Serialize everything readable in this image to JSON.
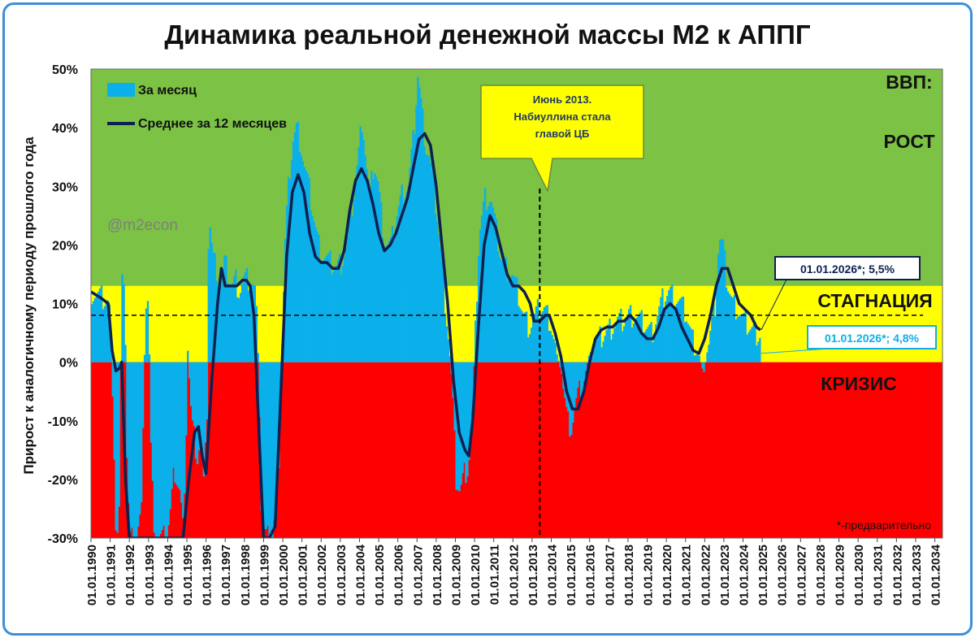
{
  "chart_data": {
    "type": "bar+line",
    "title": "Динамика реальной денежной массы М2 к АППГ",
    "ylabel": "Прирост к аналогичному периоду прошлого года",
    "ylim": [
      -30,
      50
    ],
    "y_ticks": [
      "50%",
      "40%",
      "30%",
      "20%",
      "10%",
      "0%",
      "-10%",
      "-20%",
      "-30%"
    ],
    "x_ticks": [
      "01.01.1990",
      "01.01.1991",
      "01.01.1992",
      "01.01.1993",
      "01.01.1994",
      "01.01.1995",
      "01.01.1996",
      "01.01.1997",
      "01.01.1998",
      "01.01.1999",
      "01.01.2000",
      "01.01.2001",
      "01.01.2002",
      "01.01.2003",
      "01.01.2004",
      "01.01.2005",
      "01.01.2006",
      "01.01.2007",
      "01.01.2008",
      "01.01.2009",
      "01.01.2010",
      "01.01.2011",
      "01.01.2012",
      "01.01.2013",
      "01.01.2014",
      "01.01.2015",
      "01.01.2016",
      "01.01.2017",
      "01.01.2018",
      "01.01.2019",
      "01.01.2020",
      "01.01.2021",
      "01.01.2022",
      "01.01.2023",
      "01.01.2024",
      "01.01.2025",
      "01.01.2026",
      "01.01.2027",
      "01.01.2028",
      "01.01.2029",
      "01.01.2030",
      "01.01.2031",
      "01.01.2032",
      "01.01.2033",
      "01.01.2034"
    ],
    "xlim": [
      1990,
      2034.4
    ],
    "zones": [
      {
        "label": "ВВП:",
        "sublabel": "РОСТ",
        "from": 13,
        "to": 50,
        "color": "#7cc244"
      },
      {
        "label": "СТАГНАЦИЯ",
        "from": 0,
        "to": 13,
        "color": "#ffff00"
      },
      {
        "label": "КРИЗИС",
        "from": -30,
        "to": 0,
        "color": "#ff0000"
      }
    ],
    "reference_line": {
      "y": 8,
      "style": "dashed"
    },
    "series": [
      {
        "name": "За месяц",
        "kind": "bar",
        "color": "#0bb0ea",
        "points": [
          [
            1990,
            12
          ],
          [
            1990.5,
            11
          ],
          [
            1990.9,
            10
          ],
          [
            1991.1,
            -5
          ],
          [
            1991.25,
            -28
          ],
          [
            1991.4,
            -30
          ],
          [
            1991.55,
            12
          ],
          [
            1991.7,
            16
          ],
          [
            1991.85,
            -20
          ],
          [
            1992.0,
            -30
          ],
          [
            1992.3,
            -30
          ],
          [
            1992.6,
            -25
          ],
          [
            1992.8,
            10
          ],
          [
            1992.95,
            11
          ],
          [
            1993.1,
            -18
          ],
          [
            1993.3,
            -30
          ],
          [
            1993.6,
            -30
          ],
          [
            1993.9,
            -30
          ],
          [
            1994.1,
            -25
          ],
          [
            1994.3,
            -18
          ],
          [
            1994.6,
            -22
          ],
          [
            1994.8,
            -30
          ],
          [
            1995.0,
            3
          ],
          [
            1995.2,
            -10
          ],
          [
            1995.5,
            -16
          ],
          [
            1995.7,
            -12
          ],
          [
            1995.85,
            -22
          ],
          [
            1996.0,
            -8
          ],
          [
            1996.1,
            26
          ],
          [
            1996.3,
            18
          ],
          [
            1996.5,
            16
          ],
          [
            1996.7,
            12
          ],
          [
            1996.9,
            17
          ],
          [
            1997.1,
            15
          ],
          [
            1997.3,
            13
          ],
          [
            1997.5,
            14
          ],
          [
            1997.7,
            12
          ],
          [
            1997.9,
            14
          ],
          [
            1998.1,
            14
          ],
          [
            1998.3,
            14
          ],
          [
            1998.5,
            12
          ],
          [
            1998.7,
            2
          ],
          [
            1998.85,
            -28
          ],
          [
            1999.1,
            -30
          ],
          [
            1999.4,
            -30
          ],
          [
            1999.7,
            -22
          ],
          [
            1999.9,
            2
          ],
          [
            2000.1,
            22
          ],
          [
            2000.3,
            32
          ],
          [
            2000.5,
            38
          ],
          [
            2000.7,
            40
          ],
          [
            2000.9,
            37
          ],
          [
            2001.1,
            33
          ],
          [
            2001.3,
            30
          ],
          [
            2001.5,
            26
          ],
          [
            2001.7,
            22
          ],
          [
            2001.9,
            19
          ],
          [
            2002.1,
            18
          ],
          [
            2002.4,
            17
          ],
          [
            2002.7,
            16
          ],
          [
            2003.0,
            17
          ],
          [
            2003.3,
            20
          ],
          [
            2003.6,
            27
          ],
          [
            2003.9,
            35
          ],
          [
            2004.1,
            42
          ],
          [
            2004.3,
            34
          ],
          [
            2004.5,
            28
          ],
          [
            2004.7,
            34
          ],
          [
            2004.9,
            31
          ],
          [
            2005.1,
            25
          ],
          [
            2005.3,
            20
          ],
          [
            2005.6,
            20
          ],
          [
            2005.9,
            25
          ],
          [
            2006.2,
            29
          ],
          [
            2006.5,
            30
          ],
          [
            2006.8,
            39
          ],
          [
            2007.0,
            49
          ],
          [
            2007.2,
            43
          ],
          [
            2007.4,
            37
          ],
          [
            2007.6,
            35
          ],
          [
            2007.8,
            30
          ],
          [
            2008.0,
            25
          ],
          [
            2008.2,
            18
          ],
          [
            2008.4,
            11
          ],
          [
            2008.6,
            4
          ],
          [
            2008.8,
            -5
          ],
          [
            2009.0,
            -20
          ],
          [
            2009.2,
            -22
          ],
          [
            2009.4,
            -19
          ],
          [
            2009.6,
            -18
          ],
          [
            2009.8,
            -12
          ],
          [
            2010.0,
            5
          ],
          [
            2010.2,
            22
          ],
          [
            2010.5,
            28
          ],
          [
            2010.8,
            28
          ],
          [
            2011.0,
            24
          ],
          [
            2011.3,
            18
          ],
          [
            2011.6,
            16
          ],
          [
            2011.9,
            15
          ],
          [
            2012.2,
            12
          ],
          [
            2012.5,
            8
          ],
          [
            2012.8,
            6
          ],
          [
            2013.0,
            7
          ],
          [
            2013.3,
            9
          ],
          [
            2013.6,
            9
          ],
          [
            2013.9,
            7
          ],
          [
            2014.2,
            2
          ],
          [
            2014.5,
            -2
          ],
          [
            2014.8,
            -10
          ],
          [
            2015.0,
            -11
          ],
          [
            2015.3,
            -6
          ],
          [
            2015.6,
            -4
          ],
          [
            2015.9,
            1
          ],
          [
            2016.2,
            3
          ],
          [
            2016.5,
            4
          ],
          [
            2016.8,
            5
          ],
          [
            2017.1,
            6
          ],
          [
            2017.4,
            7
          ],
          [
            2017.7,
            7
          ],
          [
            2018.0,
            8
          ],
          [
            2018.3,
            8
          ],
          [
            2018.6,
            7
          ],
          [
            2018.9,
            6
          ],
          [
            2019.2,
            5
          ],
          [
            2019.5,
            8
          ],
          [
            2019.8,
            11
          ],
          [
            2020.1,
            12
          ],
          [
            2020.4,
            11
          ],
          [
            2020.7,
            10
          ],
          [
            2021.0,
            8
          ],
          [
            2021.3,
            4
          ],
          [
            2021.6,
            2
          ],
          [
            2021.9,
            -2
          ],
          [
            2022.2,
            4
          ],
          [
            2022.5,
            10
          ],
          [
            2022.7,
            21
          ],
          [
            2022.9,
            20
          ],
          [
            2023.1,
            14
          ],
          [
            2023.4,
            10
          ],
          [
            2023.7,
            9
          ],
          [
            2024.0,
            7
          ],
          [
            2024.3,
            6
          ],
          [
            2024.6,
            5
          ],
          [
            2024.9,
            4.8
          ]
        ]
      },
      {
        "name": "Среднее за 12 месяцев",
        "kind": "line",
        "color": "#0d2050",
        "points": [
          [
            1990,
            12
          ],
          [
            1990.5,
            11
          ],
          [
            1990.9,
            10
          ],
          [
            1991.1,
            2
          ],
          [
            1991.3,
            -1.5
          ],
          [
            1991.5,
            -1
          ],
          [
            1991.6,
            0
          ],
          [
            1991.8,
            -20
          ],
          [
            1992.0,
            -30
          ],
          [
            1992.3,
            -30
          ],
          [
            1992.6,
            -30
          ],
          [
            1993.0,
            -30
          ],
          [
            1993.5,
            -30
          ],
          [
            1994.0,
            -30
          ],
          [
            1994.5,
            -30
          ],
          [
            1994.8,
            -30
          ],
          [
            1995.1,
            -20
          ],
          [
            1995.4,
            -12
          ],
          [
            1995.6,
            -11
          ],
          [
            1995.8,
            -16
          ],
          [
            1996.0,
            -19
          ],
          [
            1996.3,
            -3
          ],
          [
            1996.6,
            10
          ],
          [
            1996.8,
            16
          ],
          [
            1997.0,
            13
          ],
          [
            1997.3,
            13
          ],
          [
            1997.6,
            13
          ],
          [
            1997.9,
            14
          ],
          [
            1998.1,
            14
          ],
          [
            1998.3,
            13
          ],
          [
            1998.5,
            8
          ],
          [
            1998.8,
            -15
          ],
          [
            1999.0,
            -30
          ],
          [
            1999.3,
            -30
          ],
          [
            1999.6,
            -28
          ],
          [
            1999.9,
            -5
          ],
          [
            2000.2,
            18
          ],
          [
            2000.5,
            29
          ],
          [
            2000.8,
            32
          ],
          [
            2001.1,
            29
          ],
          [
            2001.4,
            22
          ],
          [
            2001.7,
            18
          ],
          [
            2002.0,
            17
          ],
          [
            2002.3,
            17
          ],
          [
            2002.6,
            16
          ],
          [
            2002.9,
            16
          ],
          [
            2003.2,
            19
          ],
          [
            2003.5,
            26
          ],
          [
            2003.8,
            31
          ],
          [
            2004.1,
            33
          ],
          [
            2004.4,
            31
          ],
          [
            2004.7,
            27
          ],
          [
            2005.0,
            22
          ],
          [
            2005.3,
            19
          ],
          [
            2005.6,
            20
          ],
          [
            2005.9,
            22
          ],
          [
            2006.2,
            25
          ],
          [
            2006.5,
            28
          ],
          [
            2006.8,
            33
          ],
          [
            2007.1,
            38
          ],
          [
            2007.4,
            39
          ],
          [
            2007.7,
            37
          ],
          [
            2008.0,
            30
          ],
          [
            2008.3,
            20
          ],
          [
            2008.6,
            10
          ],
          [
            2008.9,
            -3
          ],
          [
            2009.2,
            -12
          ],
          [
            2009.5,
            -15
          ],
          [
            2009.7,
            -16
          ],
          [
            2009.9,
            -10
          ],
          [
            2010.2,
            6
          ],
          [
            2010.5,
            20
          ],
          [
            2010.8,
            25
          ],
          [
            2011.1,
            23
          ],
          [
            2011.4,
            19
          ],
          [
            2011.7,
            15
          ],
          [
            2012.0,
            13
          ],
          [
            2012.3,
            13
          ],
          [
            2012.6,
            12
          ],
          [
            2012.9,
            10
          ],
          [
            2013.1,
            7
          ],
          [
            2013.4,
            7
          ],
          [
            2013.7,
            8
          ],
          [
            2013.9,
            8
          ],
          [
            2014.2,
            5
          ],
          [
            2014.5,
            1
          ],
          [
            2014.8,
            -5
          ],
          [
            2015.1,
            -8
          ],
          [
            2015.4,
            -8
          ],
          [
            2015.7,
            -5
          ],
          [
            2016.0,
            0
          ],
          [
            2016.3,
            4
          ],
          [
            2016.6,
            5.5
          ],
          [
            2016.9,
            6
          ],
          [
            2017.2,
            6
          ],
          [
            2017.5,
            7
          ],
          [
            2017.8,
            7
          ],
          [
            2018.1,
            8
          ],
          [
            2018.4,
            7
          ],
          [
            2018.7,
            5
          ],
          [
            2019.0,
            4
          ],
          [
            2019.3,
            4
          ],
          [
            2019.6,
            6
          ],
          [
            2019.9,
            9
          ],
          [
            2020.2,
            10
          ],
          [
            2020.5,
            9
          ],
          [
            2020.8,
            6
          ],
          [
            2021.1,
            4
          ],
          [
            2021.4,
            2
          ],
          [
            2021.7,
            1.5
          ],
          [
            2022.0,
            4
          ],
          [
            2022.3,
            8
          ],
          [
            2022.6,
            13
          ],
          [
            2022.9,
            16
          ],
          [
            2023.2,
            16
          ],
          [
            2023.5,
            13
          ],
          [
            2023.8,
            10
          ],
          [
            2024.1,
            9
          ],
          [
            2024.4,
            8
          ],
          [
            2024.7,
            6
          ],
          [
            2024.9,
            5.5
          ]
        ]
      }
    ],
    "annotations": [
      {
        "text": "Июнь 2013. Набиуллина стала главой ЦБ",
        "x": 2013.4,
        "style": "callout",
        "line": "dashed-vertical"
      },
      {
        "text": "01.01.2026*; 5,5%",
        "x": 2026,
        "y": 5.5,
        "series": "Среднее за 12 месяцев"
      },
      {
        "text": "01.01.2026*; 4,8%",
        "x": 2026,
        "y": 4.8,
        "series": "За месяц"
      }
    ],
    "legend": {
      "placement": "top-left",
      "items": [
        "За месяц",
        "Среднее за 12 месяцев"
      ]
    },
    "footnote": "*-предварительно",
    "watermark": "@m2econ"
  },
  "callout_lines": [
    "Июнь 2013.",
    "Набиуллина стала",
    "главой ЦБ"
  ]
}
